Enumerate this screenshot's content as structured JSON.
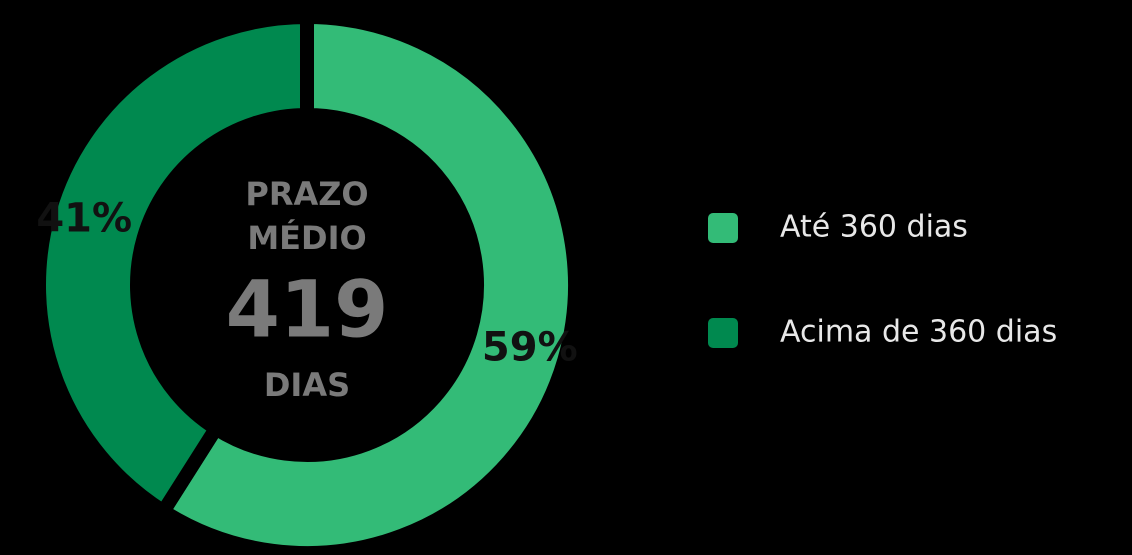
{
  "chart_data": {
    "type": "donut",
    "categories": [
      "Até 360 dias",
      "Acima de 360 dias"
    ],
    "values": [
      59,
      41
    ],
    "value_labels": [
      "59%",
      "41%"
    ],
    "colors": [
      "#33bb77",
      "#00894f"
    ],
    "center_text": [
      "PRAZO",
      "MÉDIO"
    ],
    "center_value": 419,
    "center_unit": "DIAS",
    "legend": "right"
  }
}
